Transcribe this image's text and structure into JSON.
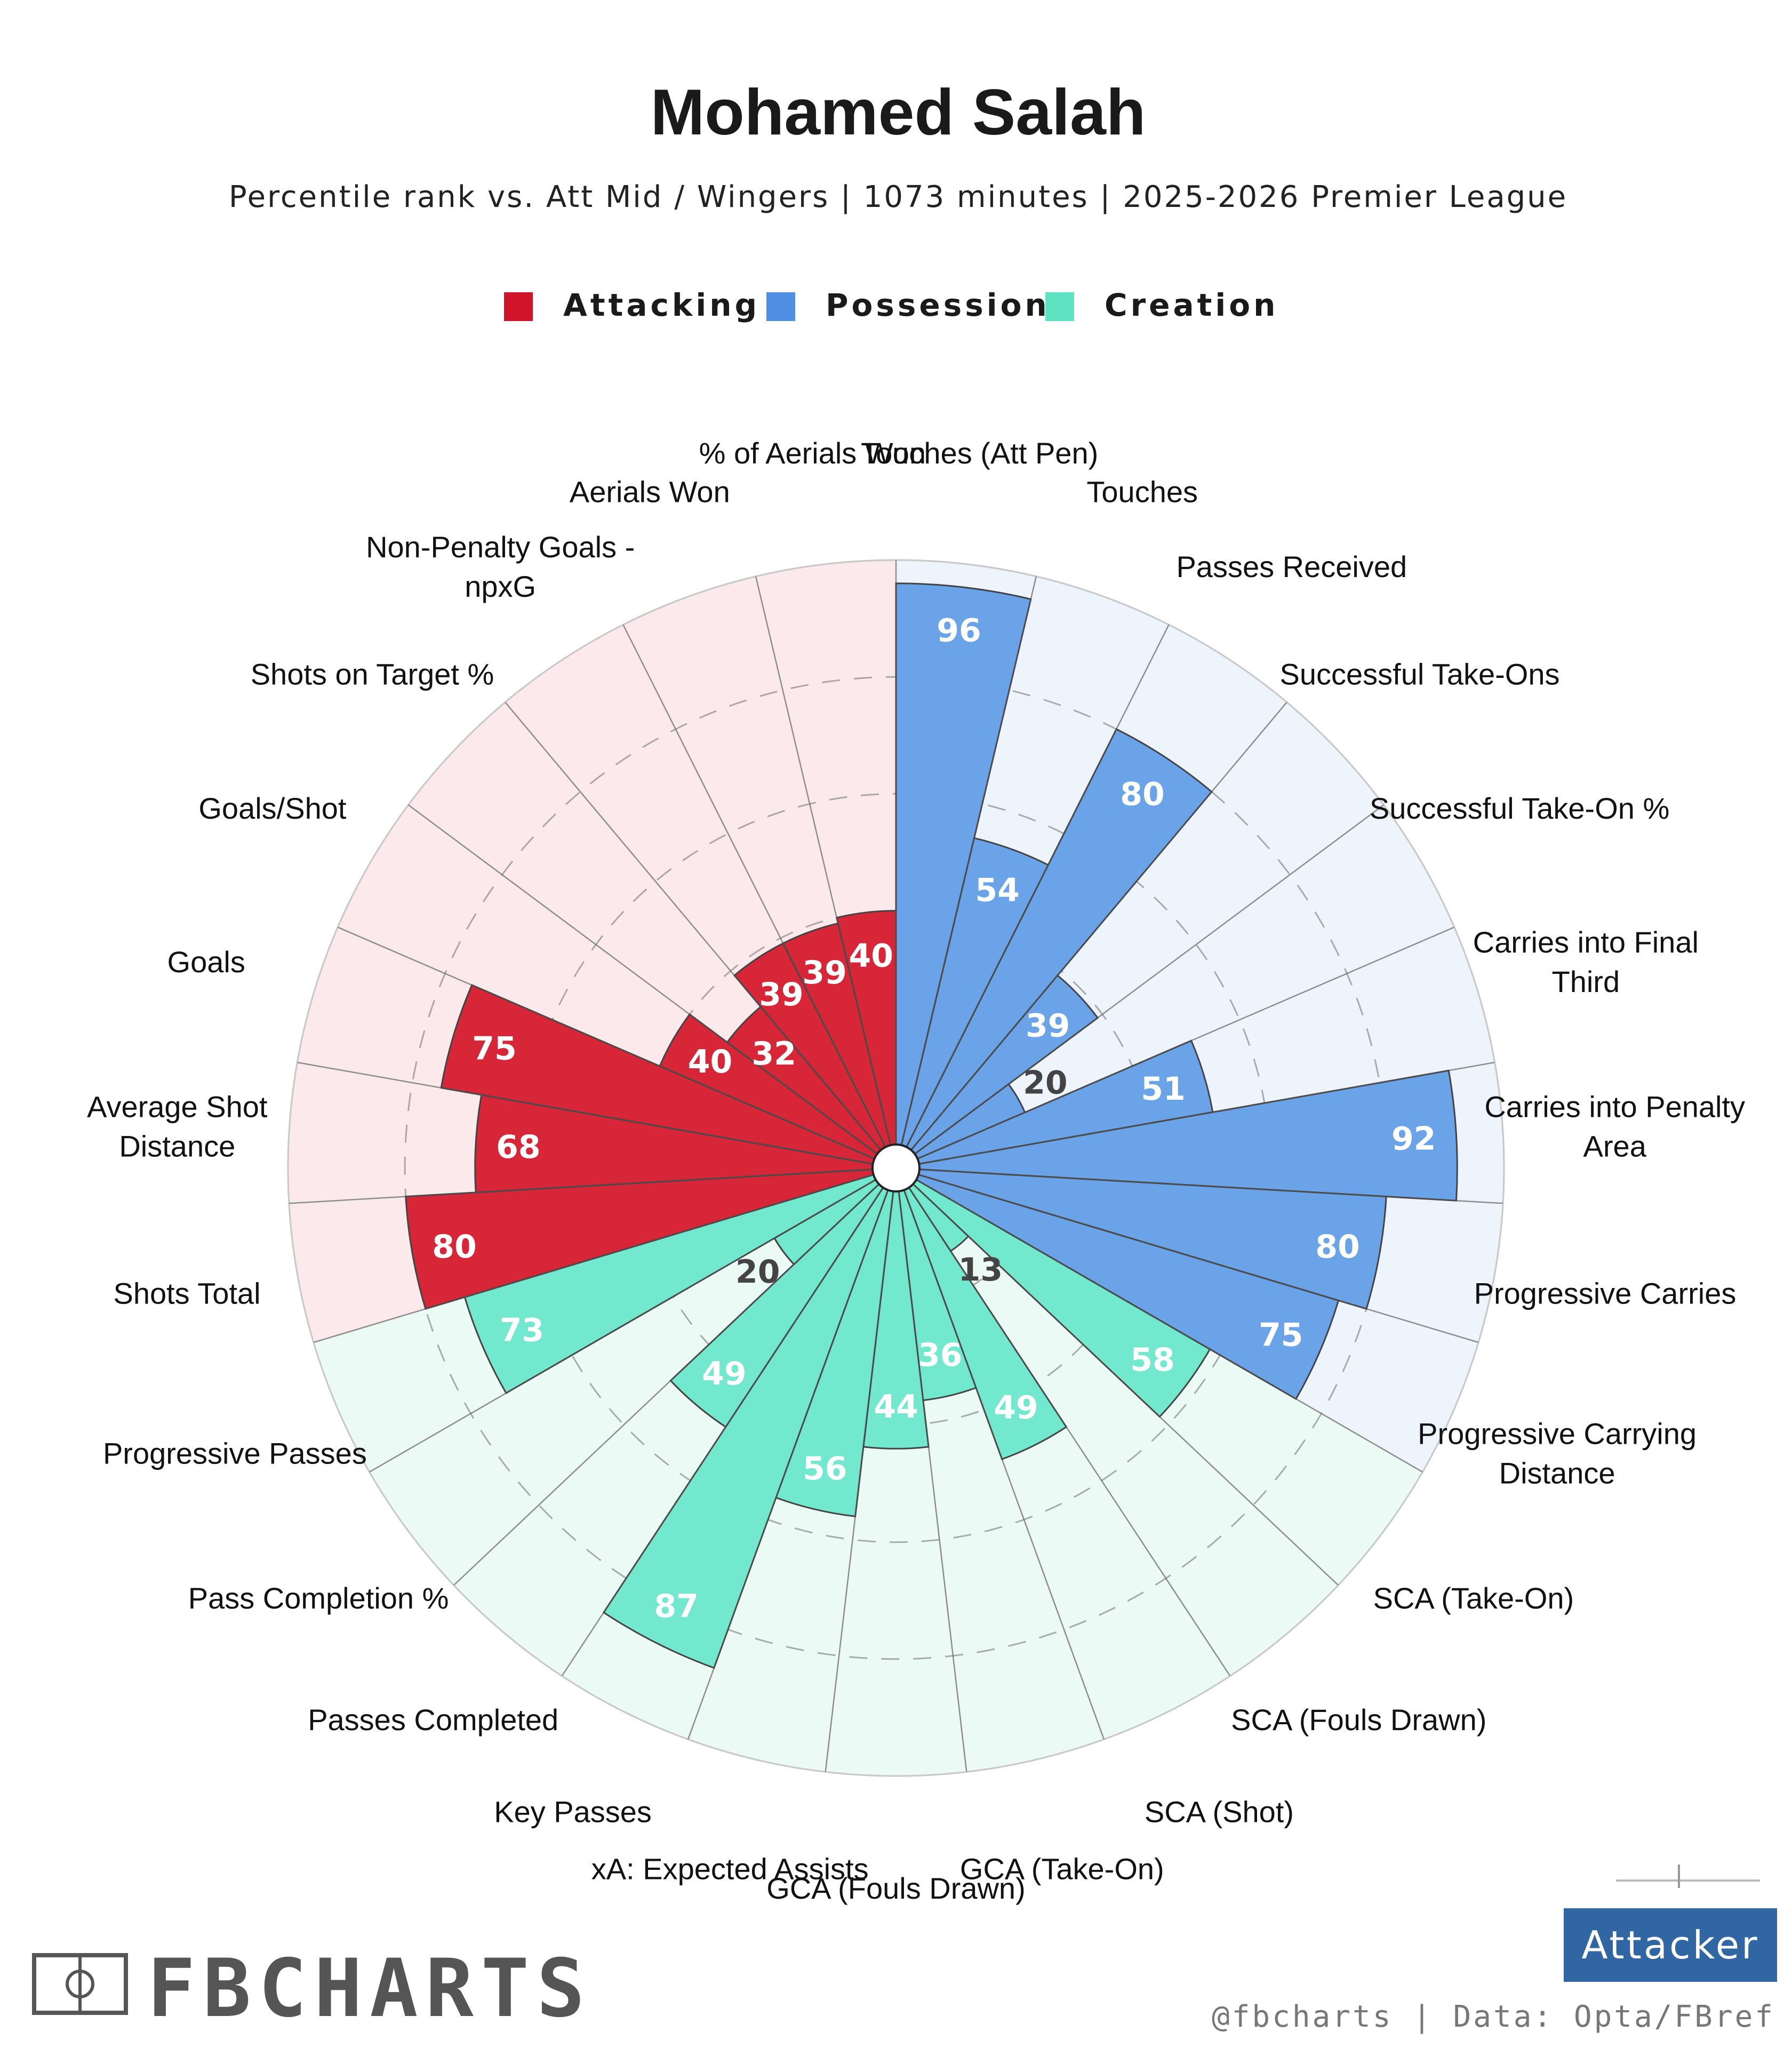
{
  "header": {
    "title": "Mohamed Salah",
    "subtitle": "Percentile rank vs. Att Mid / Wingers | 1073 minutes | 2025-2026 Premier League"
  },
  "legend": [
    {
      "label": "Attacking",
      "color": "#d0142a"
    },
    {
      "label": "Possession",
      "color": "#4f8fe3"
    },
    {
      "label": "Creation",
      "color": "#5ee3c2"
    }
  ],
  "footer": {
    "brand": "FBCHARTS",
    "credit": "@fbcharts | Data: Opta/FBref",
    "badge": "Attacker"
  },
  "chart_data": {
    "type": "polar-bar",
    "title": "Mohamed Salah",
    "range": [
      0,
      100
    ],
    "grid_rings": [
      20,
      40,
      60,
      80,
      100
    ],
    "start_angle_deg": 90,
    "direction": "clockwise",
    "categories": [
      "Touches (Att Pen)",
      "Touches",
      "Passes Received",
      "Successful Take-Ons",
      "Successful Take-On %",
      "Carries into Final Third",
      "Carries into Penalty Area",
      "Progressive Carries",
      "Progressive Carrying Distance",
      "SCA (Take-On)",
      "SCA (Fouls Drawn)",
      "SCA (Shot)",
      "GCA (Take-On)",
      "GCA (Fouls Drawn)",
      "xA: Expected Assists",
      "Key Passes",
      "Passes Completed",
      "Pass Completion %",
      "Progressive Passes",
      "Shots Total",
      "Average Shot Distance",
      "Goals",
      "Goals/Shot",
      "Shots on Target %",
      "Non-Penalty Goals - npxG",
      "Aerials Won",
      "% of Aerials Won"
    ],
    "groups": [
      "Possession",
      "Possession",
      "Possession",
      "Possession",
      "Possession",
      "Possession",
      "Possession",
      "Possession",
      "Possession",
      "Creation",
      "Creation",
      "Creation",
      "Creation",
      "Creation",
      "Creation",
      "Creation",
      "Creation",
      "Creation",
      "Creation",
      "Attacking",
      "Attacking",
      "Attacking",
      "Attacking",
      "Attacking",
      "Attacking",
      "Attacking",
      "Attacking"
    ],
    "values": [
      96,
      54,
      80,
      39,
      20,
      51,
      92,
      80,
      75,
      58,
      13,
      49,
      36,
      44,
      56,
      87,
      49,
      20,
      73,
      80,
      68,
      75,
      40,
      32,
      39,
      39,
      40
    ],
    "colors": {
      "Attacking": "#d72638",
      "Possession": "#6aa3e8",
      "Creation": "#72e8cf"
    },
    "background_colors": {
      "Attacking": "#fbe9ec",
      "Possession": "#eef4fc",
      "Creation": "#ecfaf6"
    }
  }
}
